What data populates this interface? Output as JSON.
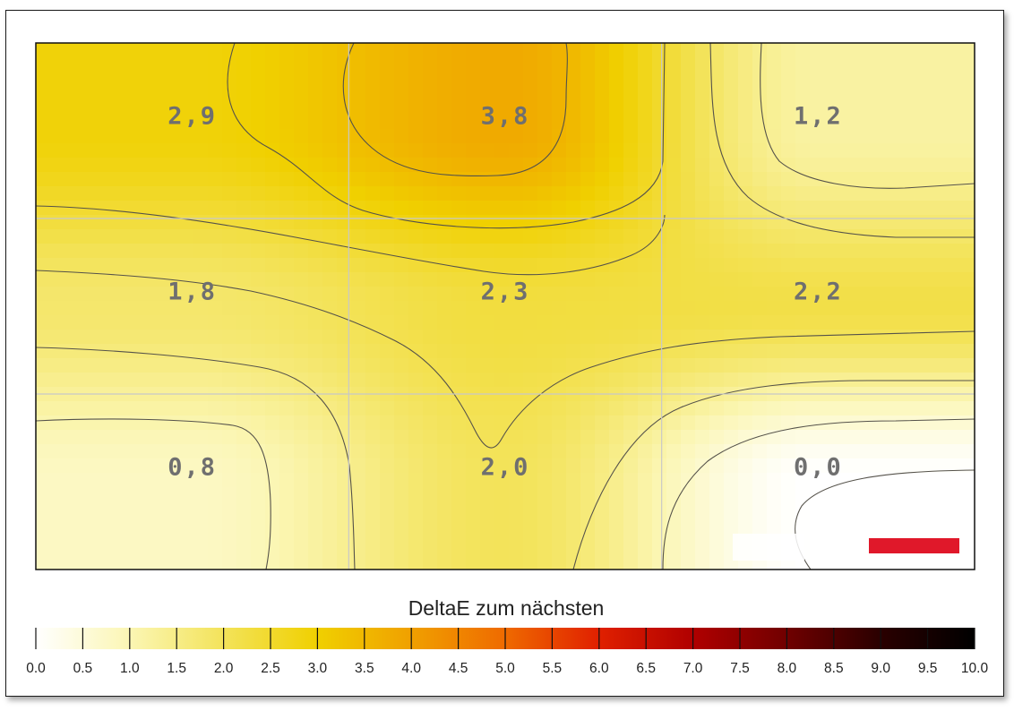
{
  "colors": {
    "scale_stops": [
      "#ffffff",
      "#fbf6b4",
      "#f3e35a",
      "#f0d000",
      "#f0a000",
      "#ef6a00",
      "#e02000",
      "#b00000",
      "#700000",
      "#2a0000",
      "#000000"
    ],
    "contour": "#55524a",
    "grid": "#c8c8c8",
    "cell_label": "#6f6f6f",
    "logo_bar": "#e0182a"
  },
  "chart_data": {
    "type": "heatmap",
    "title": "",
    "grid_rows": 3,
    "grid_cols": 3,
    "cells": [
      {
        "row": 0,
        "col": 0,
        "value": 2.9,
        "label": "2,9"
      },
      {
        "row": 0,
        "col": 1,
        "value": 3.8,
        "label": "3,8"
      },
      {
        "row": 0,
        "col": 2,
        "value": 1.2,
        "label": "1,2"
      },
      {
        "row": 1,
        "col": 0,
        "value": 1.8,
        "label": "1,8"
      },
      {
        "row": 1,
        "col": 1,
        "value": 2.3,
        "label": "2,3"
      },
      {
        "row": 1,
        "col": 2,
        "value": 2.2,
        "label": "2,2"
      },
      {
        "row": 2,
        "col": 0,
        "value": 0.8,
        "label": "0,8"
      },
      {
        "row": 2,
        "col": 1,
        "value": 2.0,
        "label": "2,0"
      },
      {
        "row": 2,
        "col": 2,
        "value": 0.0,
        "label": "0,0"
      }
    ],
    "colorbar": {
      "title": "DeltaE zum nächsten",
      "range": [
        0,
        10
      ],
      "ticks": [
        "0.0",
        "0.5",
        "1.0",
        "1.5",
        "2.0",
        "2.5",
        "3.0",
        "3.5",
        "4.0",
        "4.5",
        "5.0",
        "5.5",
        "6.0",
        "6.5",
        "7.0",
        "7.5",
        "8.0",
        "8.5",
        "9.0",
        "9.5",
        "10.0"
      ]
    },
    "contour_lines": true,
    "grid": true
  }
}
